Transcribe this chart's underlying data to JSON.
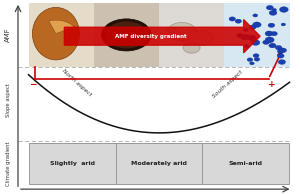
{
  "bg_color": "#ffffff",
  "arrow_color": "#cc0000",
  "arrow_text": "AMF diversity gradient",
  "minus_label": "−",
  "plus_label": "+",
  "slope_label": "Slope aspect",
  "amf_label": "AMF",
  "climate_label": "Climate gradient",
  "north_label": "North aspect",
  "south_label": "South aspect",
  "climate_boxes": [
    "Slightly  arid",
    "Moderately arid",
    "Semi-arid"
  ],
  "box_color": "#d8d8d8",
  "box_edge_color": "#999999",
  "dashed_line_color": "#aaaaaa",
  "curve_color": "#111111",
  "axis_color": "#444444",
  "img_bg_1": "#e8e0d0",
  "img_bg_2": "#ccc4b8",
  "img_bg_3": "#dedad6",
  "img_bg_4": "#dce8f0",
  "spore1_color": "#b86820",
  "spore1_edge": "#7a4010",
  "spore2_color": "#2a1008",
  "spore4_dot_color": "#1840b0"
}
